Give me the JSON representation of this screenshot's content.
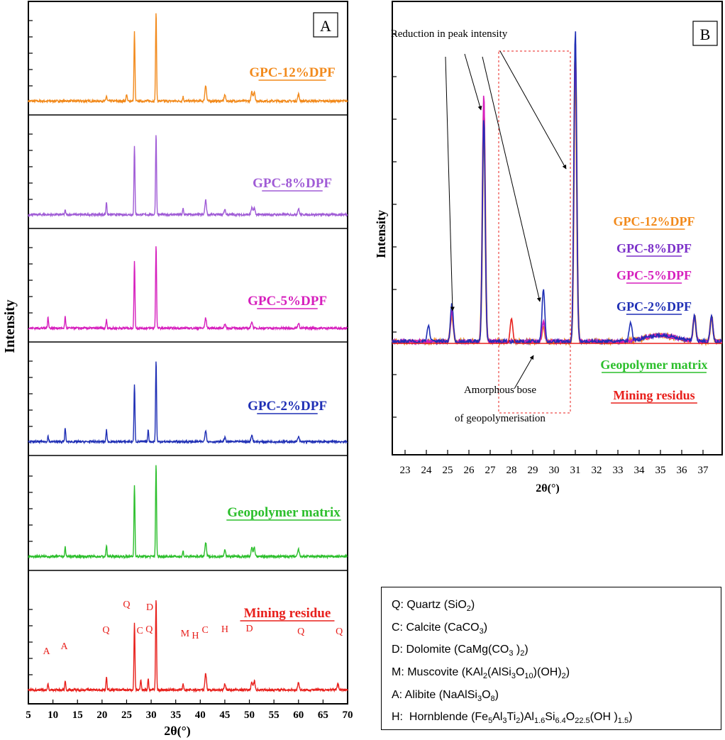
{
  "chart_data": [
    {
      "type": "line",
      "panel": "A",
      "xlabel": "2θ(°)",
      "ylabel": "Intensity",
      "xlim": [
        5,
        70
      ],
      "xticks": [
        5,
        10,
        15,
        20,
        25,
        30,
        35,
        40,
        45,
        50,
        55,
        60,
        65,
        70
      ],
      "stack_order_top_to_bottom": [
        "GPC-12%DPF",
        "GPC-8%DPF",
        "GPC-5%DPF",
        "GPC-2%DPF",
        "Geopolymer matrix",
        "Mining residue"
      ],
      "series": [
        {
          "name": "GPC-12%DPF",
          "color": "#f28a1c",
          "peaks": [
            [
              26.6,
              0.78
            ],
            [
              31.0,
              1.0
            ],
            [
              41.1,
              0.18
            ],
            [
              20.9,
              0.06
            ],
            [
              50.5,
              0.1
            ],
            [
              51.0,
              0.11
            ],
            [
              60.0,
              0.08
            ],
            [
              45.0,
              0.07
            ],
            [
              36.5,
              0.05
            ],
            [
              25.0,
              0.08
            ]
          ]
        },
        {
          "name": "GPC-8%DPF",
          "color": "#a05cd6",
          "peaks": [
            [
              26.6,
              0.8
            ],
            [
              31.0,
              0.95
            ],
            [
              20.9,
              0.15
            ],
            [
              41.1,
              0.17
            ],
            [
              50.5,
              0.08
            ],
            [
              51.0,
              0.08
            ],
            [
              60.0,
              0.07
            ],
            [
              45.0,
              0.06
            ],
            [
              36.5,
              0.07
            ],
            [
              12.5,
              0.05
            ]
          ]
        },
        {
          "name": "GPC-5%DPF",
          "color": "#d61fbd",
          "peaks": [
            [
              26.6,
              0.8
            ],
            [
              31.0,
              1.0
            ],
            [
              9.0,
              0.14
            ],
            [
              12.5,
              0.14
            ],
            [
              20.9,
              0.1
            ],
            [
              41.1,
              0.12
            ],
            [
              50.5,
              0.08
            ],
            [
              60.0,
              0.06
            ],
            [
              45.0,
              0.05
            ]
          ]
        },
        {
          "name": "GPC-2%DPF",
          "color": "#1f2fb5",
          "peaks": [
            [
              26.6,
              0.7
            ],
            [
              31.0,
              1.0
            ],
            [
              12.5,
              0.17
            ],
            [
              20.9,
              0.15
            ],
            [
              29.4,
              0.15
            ],
            [
              41.1,
              0.14
            ],
            [
              9.0,
              0.07
            ],
            [
              50.5,
              0.08
            ],
            [
              60.0,
              0.06
            ],
            [
              45.0,
              0.05
            ]
          ]
        },
        {
          "name": "Geopolymer matrix",
          "color": "#2cbf2c",
          "peaks": [
            [
              26.6,
              0.78
            ],
            [
              31.0,
              1.0
            ],
            [
              20.9,
              0.12
            ],
            [
              12.5,
              0.1
            ],
            [
              41.1,
              0.15
            ],
            [
              50.5,
              0.1
            ],
            [
              51.0,
              0.1
            ],
            [
              60.0,
              0.08
            ],
            [
              45.0,
              0.07
            ],
            [
              36.5,
              0.06
            ]
          ]
        },
        {
          "name": "Mining residue",
          "color": "#e8201c",
          "peaks": [
            [
              26.6,
              0.72
            ],
            [
              31.0,
              1.0
            ],
            [
              20.9,
              0.15
            ],
            [
              12.5,
              0.1
            ],
            [
              9.0,
              0.06
            ],
            [
              27.9,
              0.12
            ],
            [
              29.4,
              0.12
            ],
            [
              41.1,
              0.18
            ],
            [
              50.5,
              0.08
            ],
            [
              51.0,
              0.1
            ],
            [
              60.0,
              0.08
            ],
            [
              68.0,
              0.07
            ],
            [
              45.0,
              0.06
            ],
            [
              36.5,
              0.06
            ]
          ]
        }
      ],
      "annotations": [
        {
          "label": "A",
          "x": 8.7,
          "series": "Mining residue"
        },
        {
          "label": "A",
          "x": 12.3,
          "series": "Mining residue"
        },
        {
          "label": "Q",
          "x": 20.8,
          "series": "Mining residue"
        },
        {
          "label": "Q",
          "x": 25.0,
          "series": "Mining residue"
        },
        {
          "label": "C",
          "x": 27.7,
          "series": "Mining residue"
        },
        {
          "label": "Q",
          "x": 29.6,
          "series": "Mining residue"
        },
        {
          "label": "D",
          "x": 29.7,
          "series": "Mining residue"
        },
        {
          "label": "M",
          "x": 36.9,
          "series": "Mining residue"
        },
        {
          "label": "H",
          "x": 39.0,
          "series": "Mining residue"
        },
        {
          "label": "C",
          "x": 41.0,
          "series": "Mining residue"
        },
        {
          "label": "H",
          "x": 45.0,
          "series": "Mining residue"
        },
        {
          "label": "D",
          "x": 50.0,
          "series": "Mining residue"
        },
        {
          "label": "Q",
          "x": 60.5,
          "series": "Mining residue"
        },
        {
          "label": "Q",
          "x": 68.3,
          "series": "Mining residue"
        }
      ]
    },
    {
      "type": "line",
      "panel": "B",
      "xlabel": "2θ(°)",
      "ylabel": "Intensity",
      "xlim": [
        22.4,
        37.9
      ],
      "xticks": [
        23,
        24,
        25,
        26,
        27,
        28,
        29,
        30,
        31,
        32,
        33,
        34,
        35,
        36,
        37
      ],
      "series": [
        {
          "name": "GPC-2%DPF",
          "color": "#1f2fb5",
          "peaks": [
            [
              31.0,
              1.0
            ],
            [
              26.7,
              0.72
            ],
            [
              25.2,
              0.12
            ],
            [
              29.5,
              0.17
            ],
            [
              33.6,
              0.06
            ],
            [
              36.6,
              0.08
            ],
            [
              37.4,
              0.08
            ],
            [
              24.1,
              0.05
            ]
          ]
        },
        {
          "name": "GPC-5%DPF",
          "color": "#d61fbd",
          "peaks": [
            [
              31.0,
              0.97
            ],
            [
              26.7,
              0.8
            ],
            [
              25.2,
              0.1
            ],
            [
              29.5,
              0.07
            ],
            [
              36.6,
              0.08
            ],
            [
              37.4,
              0.08
            ]
          ]
        },
        {
          "name": "GPC-8%DPF",
          "color": "#7b2fc9",
          "peaks": [
            [
              31.0,
              0.96
            ],
            [
              26.7,
              0.78
            ],
            [
              25.2,
              0.1
            ],
            [
              29.5,
              0.06
            ],
            [
              36.6,
              0.08
            ],
            [
              37.4,
              0.08
            ]
          ]
        },
        {
          "name": "GPC-12%DPF",
          "color": "#f28a1c",
          "peaks": [
            [
              31.0,
              0.94
            ],
            [
              26.7,
              0.75
            ],
            [
              25.2,
              0.09
            ],
            [
              29.5,
              0.05
            ],
            [
              36.6,
              0.08
            ],
            [
              37.4,
              0.08
            ]
          ]
        },
        {
          "name": "Mining residue",
          "color": "#e8201c",
          "peaks": [
            [
              28.0,
              0.08
            ]
          ]
        }
      ],
      "annotations": {
        "reduction": "Reduction in peak intensity",
        "amorphous_line1": "Amorphous bose",
        "amorphous_line2": "of geopolymerisation",
        "legend": [
          "GPC-12%DPF",
          "GPC-8%DPF",
          "GPC-5%DPF",
          "GPC-2%DPF",
          "Geopolymer matrix",
          "Mining residus"
        ]
      }
    }
  ],
  "labels": {
    "panel_a": "A",
    "panel_b": "B",
    "a_curves": [
      "GPC-12%DPF",
      "GPC-8%DPF",
      "GPC-5%DPF",
      "GPC-2%DPF",
      "Geopolymer matrix",
      "Mining residue"
    ],
    "b_legend": [
      "GPC-12%DPF",
      "GPC-8%DPF",
      "GPC-5%DPF",
      "GPC-2%DPF",
      "Geopolymer matrix",
      "Mining residus"
    ],
    "b_reduction": "Reduction in peak intensity",
    "b_amorphous_1": "Amorphous bose",
    "b_amorphous_2": "of geopolymerisation",
    "xlabel": "2θ(°)",
    "ylabel": "Intensity"
  },
  "colors": {
    "orange": "#f28a1c",
    "purple": "#7b2fc9",
    "lilac": "#a05cd6",
    "magenta": "#d61fbd",
    "blue": "#1f2fb5",
    "green": "#2cbf2c",
    "red": "#e8201c"
  },
  "mineral_key": [
    {
      "code": "Q",
      "name": "Quartz",
      "formula": "SiO₂"
    },
    {
      "code": "C",
      "name": "Calcite",
      "formula": "CaCO₃"
    },
    {
      "code": "D",
      "name": "Dolomite",
      "formula": "CaMg(CO₃ )₂"
    },
    {
      "code": "M",
      "name": "Muscovite",
      "formula": "KAl₂(AlSi₃O₁₀)(OH)₂"
    },
    {
      "code": "A",
      "name": "Alibite",
      "formula": "NaAlSi₃O₈"
    },
    {
      "code": "H",
      "name": "Hornblende",
      "formula": "(Fe₅Al₃Ti₂)Al₁.₆Si₆.₄O₂₂.₅(OH )₁.₅"
    }
  ]
}
